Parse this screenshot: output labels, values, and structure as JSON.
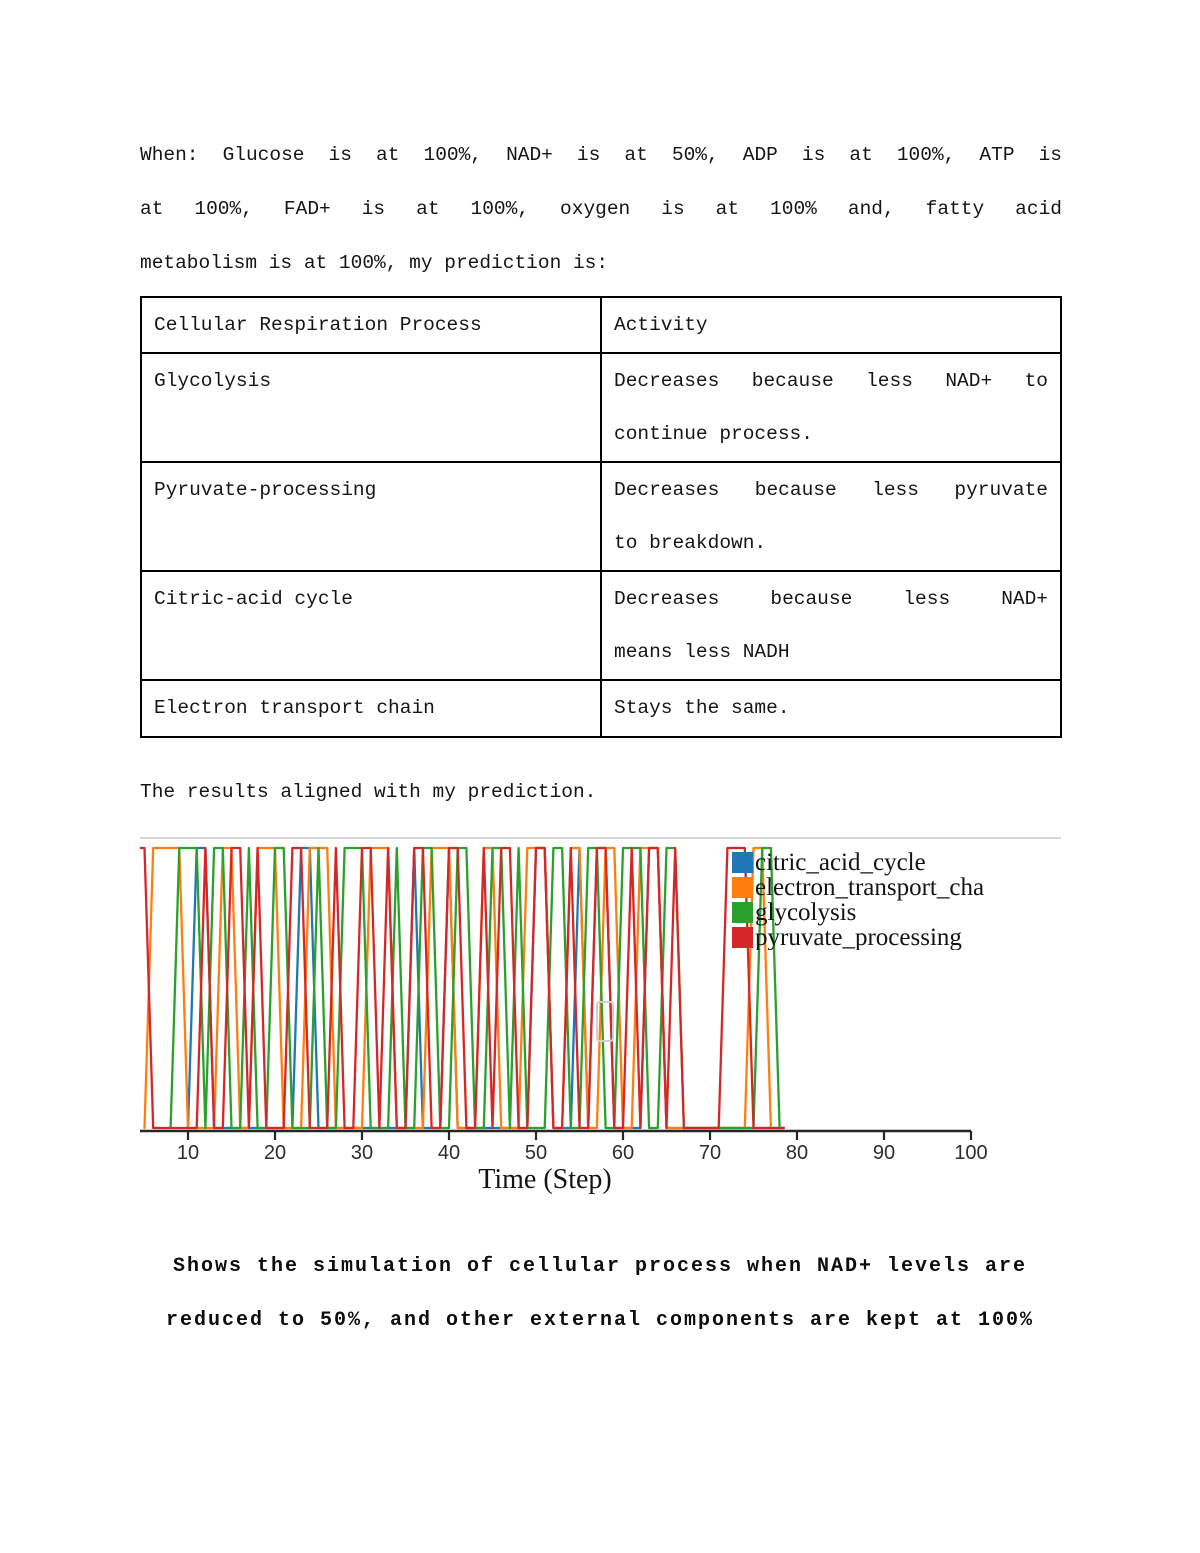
{
  "intro": {
    "lines": [
      "When: Glucose is at 100%, NAD+ is at 50%, ADP is at 100%, ATP is",
      "at 100%, FAD+ is at 100%, oxygen is at 100% and, fatty acid",
      "metabolism is at 100%, my prediction is:"
    ]
  },
  "table": {
    "headers": [
      "Cellular Respiration Process",
      "Activity"
    ],
    "rows": [
      {
        "process": "Glycolysis",
        "activity": [
          "Decreases because less NAD+ to",
          "continue process."
        ]
      },
      {
        "process": "Pyruvate-processing",
        "activity": [
          "Decreases because less pyruvate",
          "to breakdown."
        ]
      },
      {
        "process": "Citric-acid cycle",
        "activity": [
          "Decreases because less NAD+",
          "means less NADH"
        ]
      },
      {
        "process": "Electron transport chain",
        "activity": [
          "Stays the same."
        ]
      }
    ]
  },
  "results_text": "The results aligned with my prediction.",
  "chart_data": {
    "type": "line",
    "description": "Binary on/off activity (0 or 1) of four cellular-respiration processes over simulation time; pulses are linear ramps between integer steps; all activity stops near step 78, axis continues to 100",
    "xlabel": "Time (Step)",
    "x_ticks": [
      10,
      20,
      30,
      40,
      50,
      60,
      70,
      80,
      90,
      100
    ],
    "x_range": [
      4.5,
      100
    ],
    "y_levels": [
      0,
      1
    ],
    "grid": false,
    "legend_position": "top-right",
    "data_end_step": 78.5,
    "series": [
      {
        "name": "citric_acid_cycle",
        "color": "#1f77b4",
        "active_runs": [
          [
            11,
            12
          ],
          [
            23,
            24
          ],
          [
            36,
            36
          ],
          [
            40,
            40
          ],
          [
            50,
            51
          ],
          [
            55,
            55
          ],
          [
            57,
            58
          ],
          [
            63,
            64
          ]
        ]
      },
      {
        "name": "electron_transport_chain",
        "color": "#ff7f0e",
        "active_runs": [
          [
            6,
            9
          ],
          [
            14,
            15
          ],
          [
            18,
            20
          ],
          [
            24,
            26
          ],
          [
            31,
            33
          ],
          [
            38,
            40
          ],
          [
            44,
            45
          ],
          [
            49,
            51
          ],
          [
            54,
            55
          ],
          [
            58,
            59
          ],
          [
            62,
            64
          ],
          [
            75,
            76
          ]
        ]
      },
      {
        "name": "glycolysis",
        "color": "#2ca02c",
        "active_runs": [
          [
            9,
            11
          ],
          [
            13,
            14
          ],
          [
            17,
            17
          ],
          [
            20,
            21
          ],
          [
            25,
            25
          ],
          [
            28,
            30
          ],
          [
            34,
            34
          ],
          [
            37,
            38
          ],
          [
            41,
            42
          ],
          [
            45,
            46
          ],
          [
            48,
            48
          ],
          [
            52,
            53
          ],
          [
            56,
            57
          ],
          [
            60,
            62
          ],
          [
            65,
            66
          ],
          [
            76,
            77
          ]
        ]
      },
      {
        "name": "pyruvate_processing",
        "color": "#d62728",
        "active_runs": [
          [
            4,
            5
          ],
          [
            12,
            12
          ],
          [
            15,
            16
          ],
          [
            18,
            18
          ],
          [
            22,
            23
          ],
          [
            27,
            27
          ],
          [
            30,
            31
          ],
          [
            33,
            33
          ],
          [
            36,
            37
          ],
          [
            40,
            41
          ],
          [
            44,
            44
          ],
          [
            46,
            47
          ],
          [
            50,
            51
          ],
          [
            54,
            54
          ],
          [
            57,
            58
          ],
          [
            61,
            61
          ],
          [
            63,
            64
          ],
          [
            66,
            66
          ],
          [
            72,
            74
          ]
        ]
      }
    ]
  },
  "caption": {
    "lines": [
      "Shows the simulation of cellular process when NAD+ levels are",
      "reduced to 50%, and other external components are kept at 100%"
    ]
  }
}
